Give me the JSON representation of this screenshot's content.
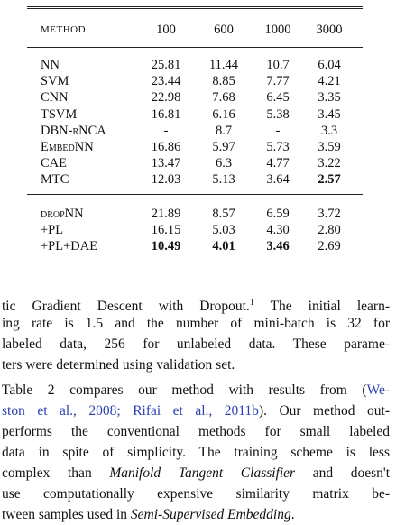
{
  "table": {
    "header": [
      "METHOD",
      "100",
      "600",
      "1000",
      "3000"
    ],
    "groups": [
      [
        [
          "NN",
          "25.81",
          "11.44",
          "10.7",
          "6.04"
        ],
        [
          "SVM",
          "23.44",
          "8.85",
          "7.77",
          "4.21"
        ],
        [
          "CNN",
          "22.98",
          "7.68",
          "6.45",
          "3.35"
        ],
        [
          "TSVM",
          "16.81",
          "6.16",
          "5.38",
          "3.45"
        ],
        [
          "DBN-rNCA",
          "-",
          "8.7",
          "-",
          "3.3"
        ],
        [
          "EmbedNN",
          "16.86",
          "5.97",
          "5.73",
          "3.59"
        ],
        [
          "CAE",
          "13.47",
          "6.3",
          "4.77",
          "3.22"
        ],
        [
          "MTC",
          "12.03",
          "5.13",
          "3.64",
          "2.57"
        ]
      ],
      [
        [
          "dropNN",
          "21.89",
          "8.57",
          "6.59",
          "3.72"
        ],
        [
          "+PL",
          "16.15",
          "5.03",
          "4.30",
          "2.80"
        ],
        [
          "+PL+DAE",
          "10.49",
          "4.01",
          "3.46",
          "2.69"
        ]
      ]
    ]
  },
  "paragraphs": [
    {
      "lines": [
        "tic Gradient Descent with Dropout.",
        "The initial learn-",
        "ing rate is 1.5 and the number of mini-batch is 32 for",
        "labeled data, 256 for unlabeled data. These parame-",
        "ters were determined using validation set."
      ],
      "footnote": "1"
    },
    {
      "lines": [
        {
          "text": "Table 2 compares our method with results from (",
          "cite": "We-"
        },
        {
          "cite": "ston et al., 2008; Rifai et al., 2011b",
          "text": "). Our method out-"
        },
        {
          "text": "performs the conventional methods for small labeled"
        },
        {
          "text": "data in spite of simplicity. The training scheme is less"
        },
        {
          "text": "complex than ",
          "em": "Manifold Tangent Classifier",
          "after": " and doesn't"
        },
        {
          "text": "use computationally expensive similarity matrix be-"
        },
        {
          "text": "tween samples used in ",
          "em": "Semi-Supervised Embedding",
          "after": "."
        }
      ]
    }
  ]
}
